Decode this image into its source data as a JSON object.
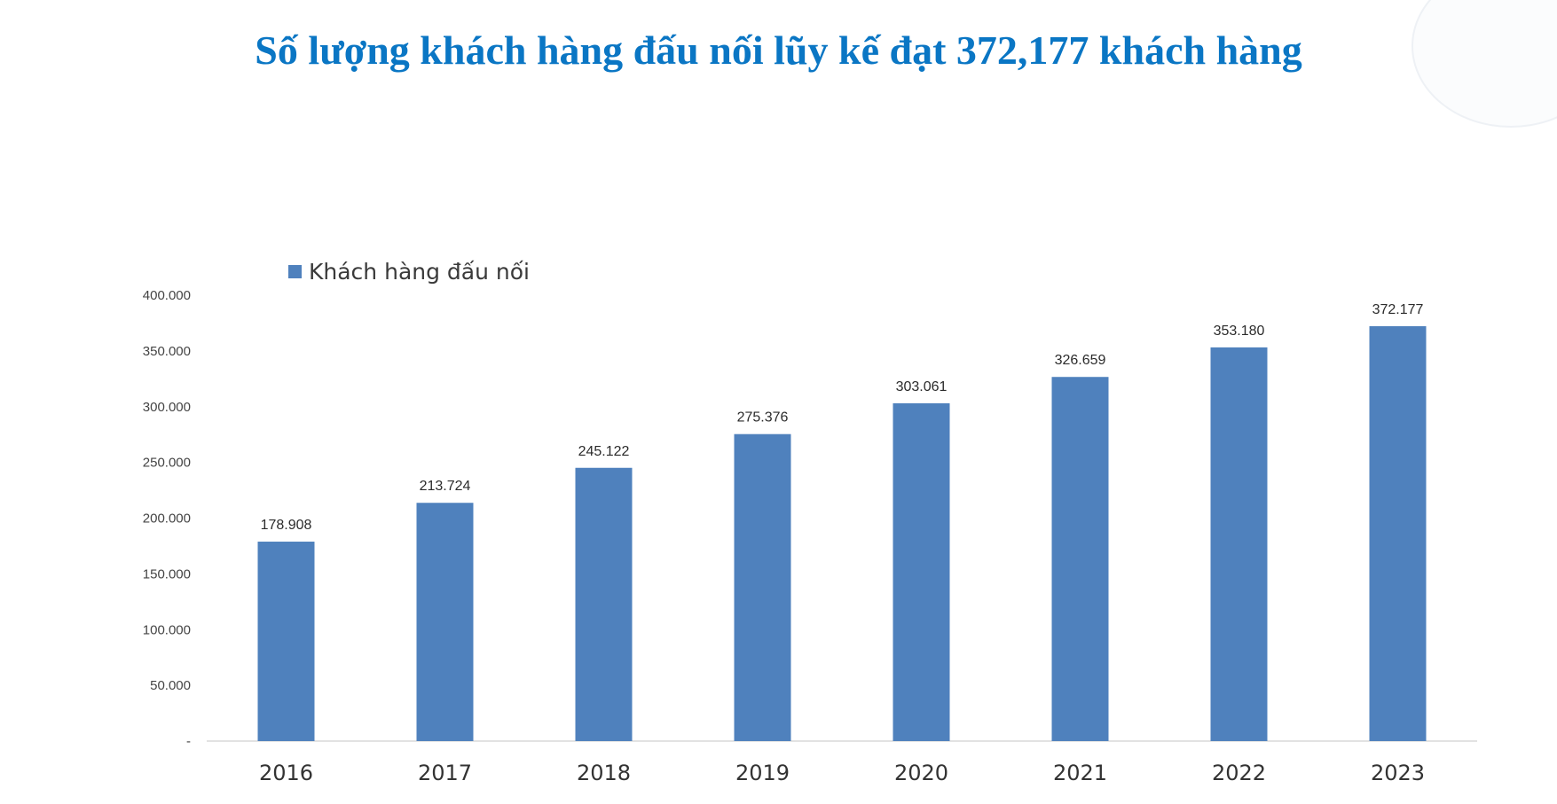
{
  "title": "Số lượng khách hàng đấu nối lũy kế đạt 372,177 khách hàng",
  "colors": {
    "title": "#0a76c4",
    "bar": "#4f81bd",
    "axis": "#d9d9d9"
  },
  "legend_icon": "square-swatch",
  "chart_data": {
    "type": "bar",
    "categories": [
      "2016",
      "2017",
      "2018",
      "2019",
      "2020",
      "2021",
      "2022",
      "2023"
    ],
    "series": [
      {
        "name": "Khách hàng đấu nối",
        "values": [
          178908,
          213724,
          245122,
          275376,
          303061,
          326659,
          353180,
          372177
        ]
      }
    ],
    "data_labels": [
      "178.908",
      "213.724",
      "245.122",
      "275.376",
      "303.061",
      "326.659",
      "353.180",
      "372.177"
    ],
    "y_ticks": [
      0,
      50000,
      100000,
      150000,
      200000,
      250000,
      300000,
      350000,
      400000
    ],
    "y_tick_labels": [
      "-",
      "50.000",
      "100.000",
      "150.000",
      "200.000",
      "250.000",
      "300.000",
      "350.000",
      "400.000"
    ],
    "ylim": [
      0,
      400000
    ],
    "grid": false,
    "legend_position": "top-left"
  }
}
